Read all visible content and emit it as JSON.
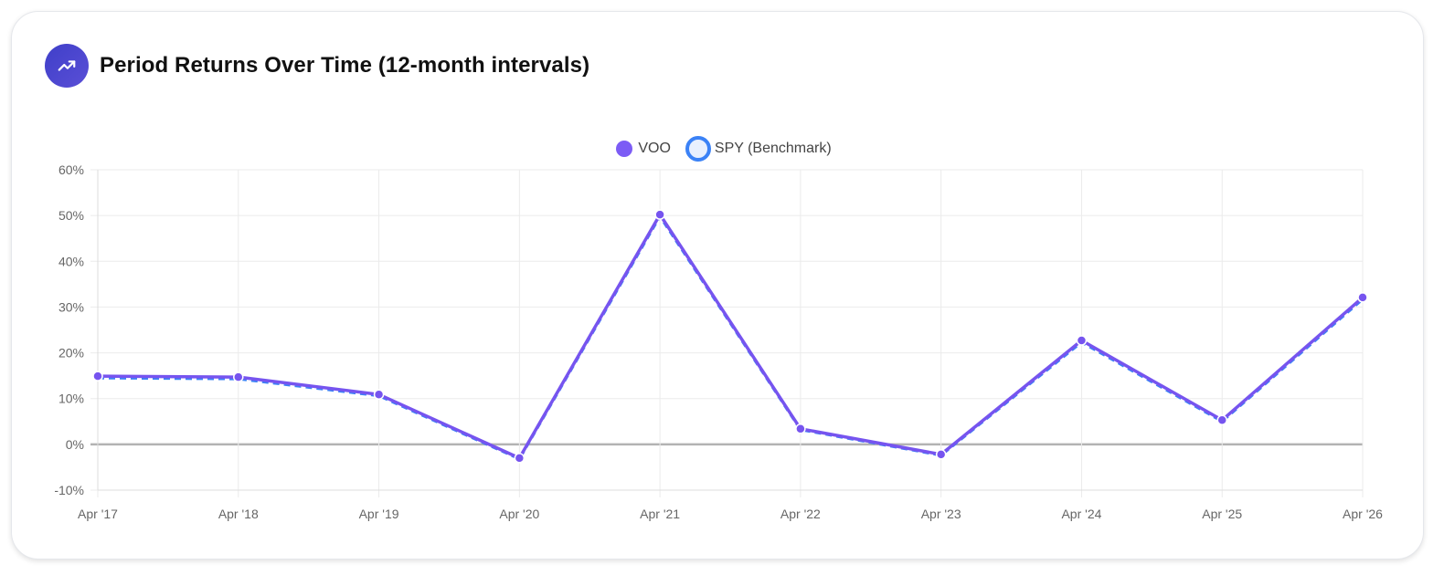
{
  "header": {
    "title": "Period Returns Over Time (12-month intervals)",
    "icon": "trending-up-icon",
    "icon_bg": "#4338ca"
  },
  "legend": {
    "items": [
      {
        "label": "VOO",
        "color": "#7c5cf5",
        "style": "filled"
      },
      {
        "label": "SPY (Benchmark)",
        "color": "#3b82f6",
        "fill": "#e8f0fe",
        "style": "outlined"
      }
    ]
  },
  "colors": {
    "voo": "#7654ef",
    "spy": "#3b82f6",
    "grid": "#ebebeb",
    "zero_line": "#b3b3b3",
    "tick": "#666666"
  },
  "chart_data": {
    "type": "line",
    "title": "Period Returns Over Time (12-month intervals)",
    "xlabel": "",
    "ylabel": "",
    "categories": [
      "Apr '17",
      "Apr '18",
      "Apr '19",
      "Apr '20",
      "Apr '21",
      "Apr '22",
      "Apr '23",
      "Apr '24",
      "Apr '25",
      "Apr '26"
    ],
    "series": [
      {
        "name": "VOO",
        "values": [
          14.9,
          14.7,
          10.9,
          -3.0,
          50.2,
          3.4,
          -2.2,
          22.7,
          5.3,
          32.1
        ]
      },
      {
        "name": "SPY (Benchmark)",
        "values": [
          14.8,
          14.6,
          10.9,
          -2.9,
          50.1,
          3.5,
          -2.1,
          22.6,
          5.3,
          32.0
        ]
      }
    ],
    "ylim": [
      -10,
      60
    ],
    "yticks": [
      60,
      50,
      40,
      30,
      20,
      10,
      0,
      -10
    ],
    "ytick_labels": [
      "60%",
      "50%",
      "40%",
      "30%",
      "20%",
      "10%",
      "0%",
      "-10%"
    ],
    "grid": true,
    "legend_position": "top"
  }
}
